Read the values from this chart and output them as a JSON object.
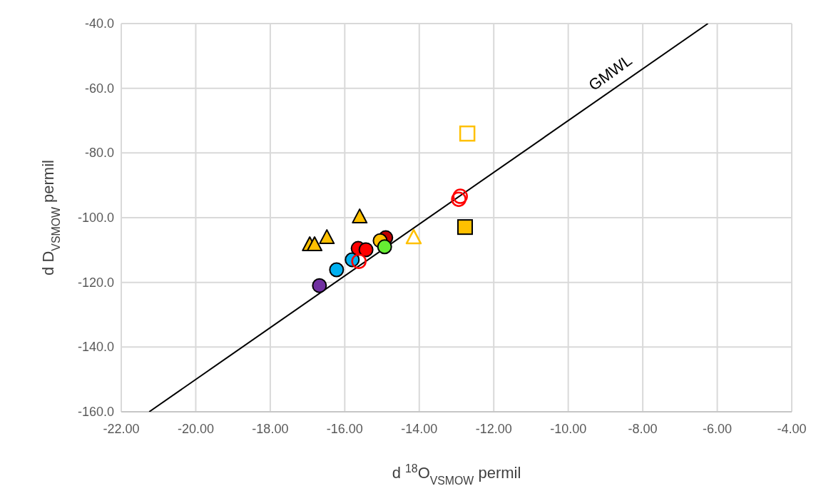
{
  "chart_data": {
    "type": "scatter",
    "xlabel": "d $^{18}$O$_{VSMOW}$ permil",
    "ylabel": "d D$_{VSMOW}$ permil",
    "xlim": [
      -22,
      -4
    ],
    "ylim": [
      -160,
      -40
    ],
    "xticks": [
      {
        "value": -22,
        "label": "-22.00"
      },
      {
        "value": -20,
        "label": "-20.00"
      },
      {
        "value": -18,
        "label": "-18.00"
      },
      {
        "value": -16,
        "label": "-16.00"
      },
      {
        "value": -14,
        "label": "-14.00"
      },
      {
        "value": -12,
        "label": "-12.00"
      },
      {
        "value": -10,
        "label": "-10.00"
      },
      {
        "value": -8,
        "label": "-8.00"
      },
      {
        "value": -6,
        "label": "-6.00"
      },
      {
        "value": -4,
        "label": "-4.00"
      }
    ],
    "yticks": [
      {
        "value": -160,
        "label": "-160.0"
      },
      {
        "value": -140,
        "label": "-140.0"
      },
      {
        "value": -120,
        "label": "-120.0"
      },
      {
        "value": -100,
        "label": "-100.0"
      },
      {
        "value": -80,
        "label": "-80.0"
      },
      {
        "value": -60,
        "label": "-60.0"
      },
      {
        "value": -40,
        "label": "-40.0"
      }
    ],
    "grid": true,
    "annotations": [
      "GMWL"
    ],
    "series": [
      {
        "type": "line",
        "color": "#000000",
        "marker": "none",
        "x": [
          -21.25,
          -6.25
        ],
        "values": [
          -160,
          -40
        ]
      },
      {
        "color": "#7030a0",
        "marker": "circle",
        "x": [
          -16.68
        ],
        "values": [
          -121.0
        ]
      },
      {
        "color": "#00b0f0",
        "marker": "circle",
        "x": [
          -16.22,
          -15.8
        ],
        "values": [
          -116.1,
          -113.0
        ]
      },
      {
        "color": "#c00000",
        "marker": "circle",
        "x": [
          -14.9
        ],
        "values": [
          -106.2
        ]
      },
      {
        "color": "#ffc000",
        "marker": "circle",
        "x": [
          -15.05
        ],
        "values": [
          -107.1
        ]
      },
      {
        "color": "#ff0000",
        "marker": "circle",
        "x": [
          -15.64,
          -15.43
        ],
        "values": [
          -109.5,
          -109.9
        ]
      },
      {
        "color": "#66ee33",
        "marker": "circle",
        "x": [
          -14.93
        ],
        "values": [
          -109.0
        ]
      },
      {
        "color": "#ff0000",
        "marker": "circle-open",
        "x": [
          -15.62,
          -12.94,
          -12.9
        ],
        "values": [
          -113.5,
          -94.3,
          -93.4
        ]
      },
      {
        "color": "#ffc000",
        "marker": "triangle",
        "x": [
          -16.94,
          -16.81,
          -16.48,
          -15.6
        ],
        "values": [
          -108.4,
          -108.4,
          -106.2,
          -99.8
        ]
      },
      {
        "color": "#ffc000",
        "marker": "triangle-open",
        "x": [
          -14.15
        ],
        "values": [
          -106.2
        ]
      },
      {
        "color": "#ffc000",
        "marker": "square",
        "x": [
          -12.77
        ],
        "values": [
          -102.9
        ]
      },
      {
        "color": "#ffc000",
        "marker": "square-open",
        "x": [
          -12.71
        ],
        "values": [
          -74.0
        ]
      }
    ]
  }
}
